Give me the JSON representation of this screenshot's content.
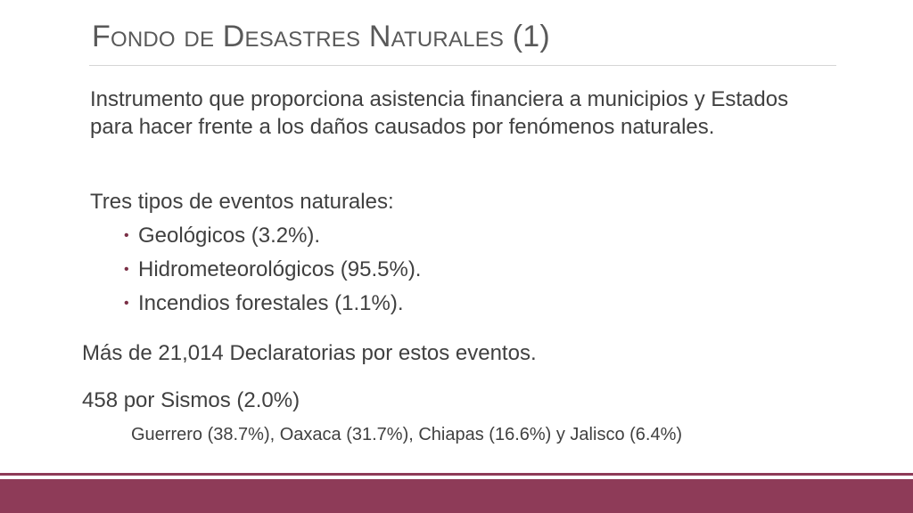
{
  "slide": {
    "title": "Fondo de Desastres Naturales (1)",
    "intro": "Instrumento que proporciona asistencia financiera a municipios y Estados para hacer frente a los daños causados por fenómenos naturales.",
    "types_heading": "Tres tipos de eventos naturales:",
    "bullets": [
      {
        "label": "Geológicos (3.2%)."
      },
      {
        "label": "Hidrometeorológicos (95.5%)."
      },
      {
        "label": "Incendios forestales (1.1%)."
      }
    ],
    "declaratorias": "Más de 21,014 Declaratorias por estos eventos.",
    "sismos": "458 por Sismos (2.0%)",
    "states": "Guerrero (38.7%), Oaxaca (31.7%), Chiapas (16.6%) y Jalisco (6.4%)"
  },
  "theme": {
    "accent_color": "#8e3b58",
    "text_color": "#404040",
    "title_color": "#595959",
    "bullet_icon": "bullet-dot-icon"
  }
}
